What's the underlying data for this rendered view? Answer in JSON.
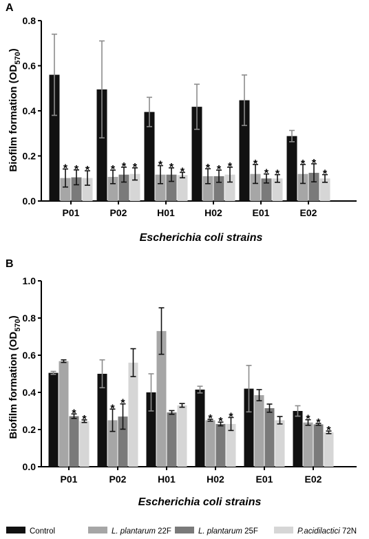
{
  "chart_data": [
    {
      "panel": "A",
      "type": "bar",
      "categories": [
        "P01",
        "P02",
        "H01",
        "H02",
        "E01",
        "E02"
      ],
      "xlabel": "Escherichia coli strains",
      "ylabel_main": "Biofilm formation (OD",
      "ylabel_sub": "570",
      "ylabel_close": ")",
      "ylim": [
        0,
        0.8
      ],
      "yticks": [
        "0.0",
        "0.2",
        "0.4",
        "0.6",
        "0.8"
      ],
      "yticks_values": [
        0,
        0.2,
        0.4,
        0.6,
        0.8
      ],
      "series": [
        {
          "name": "Control",
          "values": [
            0.56,
            0.495,
            0.395,
            0.418,
            0.447,
            0.288
          ],
          "errors": [
            0.18,
            0.215,
            0.065,
            0.1,
            0.112,
            0.025
          ],
          "significant": [
            false,
            false,
            false,
            false,
            false,
            false
          ]
        },
        {
          "name": "L. plantarum 22F",
          "values": [
            0.102,
            0.107,
            0.117,
            0.11,
            0.12,
            0.12
          ],
          "errors": [
            0.04,
            0.03,
            0.04,
            0.033,
            0.042,
            0.042
          ],
          "significant": [
            true,
            true,
            true,
            true,
            true,
            true
          ]
        },
        {
          "name": "L. plantarum 25F",
          "values": [
            0.105,
            0.117,
            0.117,
            0.11,
            0.1,
            0.125
          ],
          "errors": [
            0.033,
            0.033,
            0.03,
            0.027,
            0.02,
            0.04
          ],
          "significant": [
            true,
            true,
            true,
            true,
            true,
            true
          ]
        },
        {
          "name": "P.acidilactici 72N",
          "values": [
            0.102,
            0.12,
            0.115,
            0.117,
            0.1,
            0.1
          ],
          "errors": [
            0.032,
            0.027,
            0.012,
            0.033,
            0.017,
            0.017
          ],
          "significant": [
            true,
            true,
            true,
            true,
            true,
            true
          ]
        }
      ]
    },
    {
      "panel": "B",
      "type": "bar",
      "categories": [
        "P01",
        "P02",
        "H01",
        "H02",
        "E01",
        "E02"
      ],
      "xlabel": "Escherichia coli strains",
      "ylabel_main": "Biofilm formation (OD",
      "ylabel_sub": "570",
      "ylabel_close": ")",
      "ylim": [
        0,
        1.0
      ],
      "yticks": [
        "0.0",
        "0.2",
        "0.4",
        "0.6",
        "0.8",
        "1.0"
      ],
      "yticks_values": [
        0,
        0.2,
        0.4,
        0.6,
        0.8,
        1.0
      ],
      "series": [
        {
          "name": "Control",
          "values": [
            0.505,
            0.5,
            0.4,
            0.415,
            0.42,
            0.3
          ],
          "errors": [
            0.008,
            0.075,
            0.1,
            0.018,
            0.125,
            0.028
          ],
          "significant": [
            false,
            false,
            false,
            false,
            false,
            false
          ]
        },
        {
          "name": "L. plantarum 22F",
          "values": [
            0.568,
            0.25,
            0.73,
            0.25,
            0.385,
            0.238
          ],
          "errors": [
            0.007,
            0.06,
            0.125,
            0.005,
            0.03,
            0.015
          ],
          "significant": [
            false,
            true,
            false,
            true,
            false,
            true
          ]
        },
        {
          "name": "L. plantarum 25F",
          "values": [
            0.272,
            0.27,
            0.292,
            0.23,
            0.315,
            0.228
          ],
          "errors": [
            0.012,
            0.068,
            0.01,
            0.01,
            0.022,
            0.005
          ],
          "significant": [
            true,
            true,
            false,
            true,
            false,
            true
          ]
        },
        {
          "name": "P.acidilactici 72N",
          "values": [
            0.245,
            0.56,
            0.33,
            0.23,
            0.25,
            0.185
          ],
          "errors": [
            0.007,
            0.075,
            0.01,
            0.035,
            0.02,
            0.007
          ],
          "significant": [
            true,
            false,
            false,
            true,
            false,
            true
          ]
        }
      ]
    }
  ],
  "colors": {
    "Control": "#111111",
    "L. plantarum 22F": "#a6a6a6",
    "L. plantarum 25F": "#7a7a7a",
    "P.acidilactici 72N": "#d6d6d6",
    "errorbar_control": "#8c8c8c",
    "errorbar_treatment": "#111111"
  },
  "significance_mark": "*",
  "legend": {
    "position": "bottom",
    "items": [
      {
        "species": "Control",
        "strain": ""
      },
      {
        "species": "L. plantarum",
        "strain": " 22F"
      },
      {
        "species": "L. plantarum",
        "strain": " 25F"
      },
      {
        "species": "P.acidilactici",
        "strain": " 72N"
      }
    ]
  }
}
